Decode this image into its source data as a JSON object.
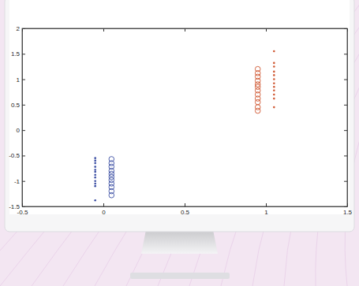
{
  "chart_data": {
    "type": "scatter",
    "xlim": [
      -0.5,
      1.5
    ],
    "xticks": [
      -0.5,
      0,
      0.5,
      1,
      1.5
    ],
    "ylim": [
      -1.5,
      2
    ],
    "yticks": [
      -1.5,
      -1,
      -0.5,
      0,
      0.5,
      1,
      1.5,
      2
    ],
    "series": [
      {
        "color": "#3b4ea3",
        "marker": "dot",
        "x": [
          -0.05,
          -0.05,
          -0.05,
          -0.05,
          -0.05,
          -0.05,
          -0.05,
          -0.05,
          -0.05,
          -0.05,
          -0.05,
          -0.05
        ],
        "values": [
          -0.55,
          -0.6,
          -0.65,
          -0.72,
          -0.78,
          -0.82,
          -0.88,
          -0.93,
          -1.0,
          -1.05,
          -1.1,
          -1.38
        ]
      },
      {
        "color": "#3b4ea3",
        "marker": "circle",
        "x": [
          0.05,
          0.05,
          0.05,
          0.05,
          0.05,
          0.05,
          0.05,
          0.05,
          0.05,
          0.05,
          0.05
        ],
        "values": [
          -0.57,
          -0.65,
          -0.72,
          -0.8,
          -0.86,
          -0.92,
          -0.98,
          -1.05,
          -1.12,
          -1.2,
          -1.28
        ]
      },
      {
        "color": "#cf5630",
        "marker": "circle",
        "x": [
          0.95,
          0.95,
          0.95,
          0.95,
          0.95,
          0.95,
          0.95,
          0.95,
          0.95,
          0.95,
          0.95,
          0.95
        ],
        "values": [
          0.38,
          0.45,
          0.55,
          0.62,
          0.7,
          0.78,
          0.85,
          0.9,
          0.97,
          1.05,
          1.12,
          1.2
        ]
      },
      {
        "color": "#cf5630",
        "marker": "dot",
        "x": [
          1.05,
          1.05,
          1.05,
          1.05,
          1.05,
          1.05,
          1.05,
          1.05,
          1.05,
          1.05,
          1.05,
          1.05
        ],
        "values": [
          0.45,
          0.62,
          0.7,
          0.78,
          0.85,
          0.92,
          1.0,
          1.08,
          1.15,
          1.25,
          1.32,
          1.55
        ]
      }
    ]
  }
}
